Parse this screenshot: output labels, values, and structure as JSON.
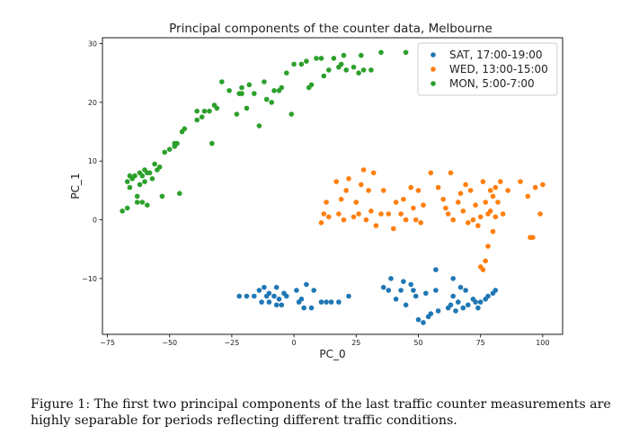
{
  "chart_data": {
    "type": "scatter",
    "title": "Principal components of the counter data, Melbourne",
    "xlabel": "PC_0",
    "ylabel": "PC_1",
    "xlim": [
      -77,
      108
    ],
    "ylim": [
      -19.5,
      31
    ],
    "x_ticks": [
      -75,
      -50,
      -25,
      0,
      25,
      50,
      75,
      100
    ],
    "x_tick_labels": [
      "−75",
      "−50",
      "−25",
      "0",
      "25",
      "50",
      "75",
      "100"
    ],
    "y_ticks": [
      -10,
      0,
      10,
      20,
      30
    ],
    "y_tick_labels": [
      "−10",
      "0",
      "10",
      "20",
      "30"
    ],
    "grid": false,
    "legend_position": "upper-right",
    "series": [
      {
        "name": "SAT, 17:00-19:00",
        "color": "#1f77b4",
        "points": [
          [
            -22,
            -13
          ],
          [
            -19,
            -13
          ],
          [
            -16,
            -13
          ],
          [
            -14,
            -12
          ],
          [
            -13,
            -14
          ],
          [
            -12,
            -11.5
          ],
          [
            -11,
            -13
          ],
          [
            -10,
            -12.5
          ],
          [
            -10,
            -14
          ],
          [
            -8,
            -13
          ],
          [
            -7,
            -11.5
          ],
          [
            -6,
            -13.5
          ],
          [
            -5,
            -14.5
          ],
          [
            -7,
            -14.5
          ],
          [
            -4,
            -12.5
          ],
          [
            -3,
            -13
          ],
          [
            1,
            -12
          ],
          [
            2,
            -14
          ],
          [
            3,
            -13.5
          ],
          [
            4,
            -15
          ],
          [
            5,
            -11
          ],
          [
            7,
            -15
          ],
          [
            8,
            -12
          ],
          [
            11,
            -14
          ],
          [
            13,
            -14
          ],
          [
            15,
            -14
          ],
          [
            18,
            -14
          ],
          [
            22,
            -13
          ],
          [
            36,
            -11.5
          ],
          [
            38,
            -12
          ],
          [
            39,
            -10
          ],
          [
            41,
            -13.5
          ],
          [
            43,
            -12
          ],
          [
            44,
            -10.5
          ],
          [
            45,
            -14.5
          ],
          [
            47,
            -11
          ],
          [
            48,
            -12
          ],
          [
            49,
            -13
          ],
          [
            50,
            -17
          ],
          [
            52,
            -17.5
          ],
          [
            53,
            -12.5
          ],
          [
            54,
            -16.5
          ],
          [
            55,
            -16
          ],
          [
            57,
            -8.5
          ],
          [
            57,
            -12
          ],
          [
            58,
            -15.5
          ],
          [
            62,
            -15
          ],
          [
            63,
            -14.5
          ],
          [
            64,
            -13
          ],
          [
            64,
            -10
          ],
          [
            65,
            -15.5
          ],
          [
            66,
            -14
          ],
          [
            67,
            -11.5
          ],
          [
            68,
            -15
          ],
          [
            69,
            -12
          ],
          [
            70,
            -14.5
          ],
          [
            72,
            -13.5
          ],
          [
            73,
            -14
          ],
          [
            74,
            -15
          ],
          [
            75,
            -14
          ],
          [
            77,
            -13.5
          ],
          [
            78,
            -13
          ],
          [
            80,
            -12.5
          ],
          [
            81,
            -12
          ]
        ]
      },
      {
        "name": "WED, 13:00-15:00",
        "color": "#ff7f0e",
        "points": [
          [
            11,
            -0.5
          ],
          [
            12,
            1
          ],
          [
            13,
            3
          ],
          [
            14,
            0.5
          ],
          [
            17,
            6.5
          ],
          [
            18,
            1
          ],
          [
            19,
            3.5
          ],
          [
            20,
            0
          ],
          [
            21,
            5
          ],
          [
            22,
            7
          ],
          [
            24,
            0.5
          ],
          [
            25,
            3
          ],
          [
            26,
            1
          ],
          [
            27,
            6
          ],
          [
            28,
            8.5
          ],
          [
            29,
            0
          ],
          [
            30,
            5
          ],
          [
            31,
            1.5
          ],
          [
            32,
            8
          ],
          [
            33,
            -1
          ],
          [
            35,
            1
          ],
          [
            36,
            5
          ],
          [
            38,
            1
          ],
          [
            40,
            -1.5
          ],
          [
            41,
            3
          ],
          [
            43,
            1
          ],
          [
            44,
            3.5
          ],
          [
            45,
            0
          ],
          [
            47,
            5.5
          ],
          [
            48,
            2
          ],
          [
            49,
            0
          ],
          [
            50,
            5
          ],
          [
            51,
            -0.5
          ],
          [
            52,
            2.5
          ],
          [
            55,
            8
          ],
          [
            58,
            5.5
          ],
          [
            60,
            3.5
          ],
          [
            61,
            2
          ],
          [
            62,
            1
          ],
          [
            63,
            8
          ],
          [
            64,
            0
          ],
          [
            66,
            3
          ],
          [
            67,
            4.5
          ],
          [
            68,
            1.5
          ],
          [
            69,
            6
          ],
          [
            70,
            -0.5
          ],
          [
            71,
            5
          ],
          [
            72,
            0
          ],
          [
            73,
            2.5
          ],
          [
            74,
            -1
          ],
          [
            75,
            0.5
          ],
          [
            75,
            -8
          ],
          [
            76,
            6.5
          ],
          [
            76,
            -8.5
          ],
          [
            77,
            -7
          ],
          [
            77,
            3
          ],
          [
            78,
            1
          ],
          [
            78,
            -4.5
          ],
          [
            79,
            1.5
          ],
          [
            79,
            5
          ],
          [
            80,
            -2
          ],
          [
            80,
            4
          ],
          [
            81,
            0.5
          ],
          [
            81,
            5.5
          ],
          [
            82,
            3
          ],
          [
            83,
            6.5
          ],
          [
            84,
            1
          ],
          [
            86,
            5
          ],
          [
            91,
            6.5
          ],
          [
            94,
            4
          ],
          [
            95,
            -3
          ],
          [
            96,
            -3
          ],
          [
            97,
            5.5
          ],
          [
            99,
            1
          ],
          [
            100,
            6
          ]
        ]
      },
      {
        "name": "MON, 5:00-7:00",
        "color": "#2ca02c",
        "points": [
          [
            -69,
            1.5
          ],
          [
            -67,
            2
          ],
          [
            -67,
            6.5
          ],
          [
            -66,
            7.5
          ],
          [
            -66,
            5.5
          ],
          [
            -65,
            7
          ],
          [
            -64,
            7.5
          ],
          [
            -63,
            4
          ],
          [
            -63,
            3
          ],
          [
            -62,
            8
          ],
          [
            -62,
            6
          ],
          [
            -61,
            7.5
          ],
          [
            -61,
            3
          ],
          [
            -60,
            8.5
          ],
          [
            -60,
            6.5
          ],
          [
            -59,
            8
          ],
          [
            -59,
            2.5
          ],
          [
            -58,
            8
          ],
          [
            -57,
            7
          ],
          [
            -56,
            9.5
          ],
          [
            -55,
            8.5
          ],
          [
            -54,
            9
          ],
          [
            -53,
            4
          ],
          [
            -52,
            11.5
          ],
          [
            -50,
            12
          ],
          [
            -48,
            13
          ],
          [
            -48,
            12.5
          ],
          [
            -47,
            13
          ],
          [
            -46,
            4.5
          ],
          [
            -45,
            15
          ],
          [
            -44,
            15.5
          ],
          [
            -39,
            18.5
          ],
          [
            -39,
            17
          ],
          [
            -37,
            17.5
          ],
          [
            -36,
            18.5
          ],
          [
            -34,
            18.5
          ],
          [
            -33,
            13
          ],
          [
            -32,
            19.5
          ],
          [
            -31,
            19
          ],
          [
            -29,
            23.5
          ],
          [
            -26,
            22
          ],
          [
            -23,
            18
          ],
          [
            -22,
            21.5
          ],
          [
            -21,
            21.5
          ],
          [
            -21,
            22.5
          ],
          [
            -19,
            19
          ],
          [
            -18,
            23
          ],
          [
            -16,
            21.5
          ],
          [
            -14,
            16
          ],
          [
            -12,
            23.5
          ],
          [
            -11,
            20.5
          ],
          [
            -9,
            20
          ],
          [
            -8,
            22
          ],
          [
            -6,
            22
          ],
          [
            -5,
            22.5
          ],
          [
            -3,
            25
          ],
          [
            -1,
            18
          ],
          [
            0,
            26.5
          ],
          [
            3,
            26.5
          ],
          [
            5,
            27
          ],
          [
            6,
            22.5
          ],
          [
            7,
            23
          ],
          [
            9,
            27.5
          ],
          [
            11,
            27.5
          ],
          [
            12,
            24.5
          ],
          [
            14,
            25.5
          ],
          [
            16,
            27.5
          ],
          [
            18,
            26
          ],
          [
            19,
            26.5
          ],
          [
            20,
            28
          ],
          [
            21,
            25.5
          ],
          [
            24,
            26
          ],
          [
            26,
            25
          ],
          [
            27,
            28
          ],
          [
            28,
            25.5
          ],
          [
            31,
            25.5
          ],
          [
            35,
            28.5
          ],
          [
            45,
            28.5
          ]
        ]
      }
    ]
  },
  "caption": {
    "text": "Figure 1: The first two principal components of the last traffic counter measurements are highly separable for periods reflecting different traffic conditions."
  }
}
